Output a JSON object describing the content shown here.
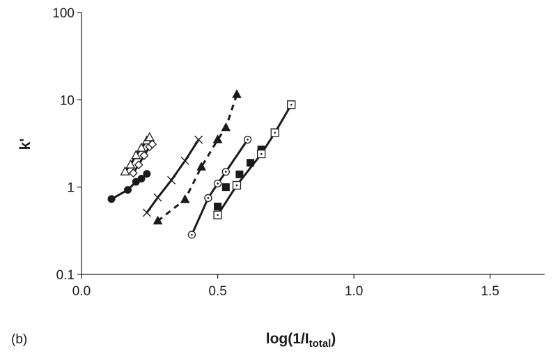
{
  "chart_data": {
    "type": "scatter",
    "panel_label": "(b)",
    "xlabel_main": "log(1/I",
    "xlabel_sub": "total",
    "xlabel_end": ")",
    "ylabel": "k'",
    "xlim": [
      0,
      1.7
    ],
    "ylim": [
      0.1,
      100
    ],
    "y_scale": "log",
    "grid": false,
    "x_ticks": [
      "0.0",
      "0.5",
      "1.0",
      "1.5"
    ],
    "x_tick_values": [
      0,
      0.5,
      1.0,
      1.5
    ],
    "y_ticks": [
      "0.1",
      "1",
      "10",
      "100"
    ],
    "y_tick_values": [
      0.1,
      1,
      10,
      100
    ],
    "series": [
      {
        "marker": "open-triangle",
        "line": "solid",
        "points": [
          [
            0.16,
            1.5
          ],
          [
            0.18,
            1.8
          ],
          [
            0.2,
            2.3
          ],
          [
            0.22,
            2.8
          ],
          [
            0.24,
            3.4
          ],
          [
            0.25,
            3.7
          ]
        ]
      },
      {
        "marker": "open-diamond",
        "line": "solid",
        "points": [
          [
            0.19,
            1.45
          ],
          [
            0.21,
            1.8
          ],
          [
            0.23,
            2.3
          ],
          [
            0.25,
            2.9
          ],
          [
            0.26,
            3.1
          ]
        ]
      },
      {
        "marker": "filled-circle",
        "line": "solid",
        "points": [
          [
            0.11,
            0.73
          ],
          [
            0.17,
            0.93
          ],
          [
            0.2,
            1.15
          ],
          [
            0.22,
            1.25
          ],
          [
            0.24,
            1.42
          ]
        ]
      },
      {
        "marker": "cross",
        "line": "solid",
        "points": [
          [
            0.24,
            0.51
          ],
          [
            0.28,
            0.76
          ],
          [
            0.33,
            1.2
          ],
          [
            0.38,
            2.0
          ],
          [
            0.43,
            3.5
          ]
        ]
      },
      {
        "marker": "filled-triangle",
        "line": "dashed",
        "points": [
          [
            0.28,
            0.41
          ],
          [
            0.38,
            0.72
          ],
          [
            0.44,
            1.7
          ],
          [
            0.5,
            3.5
          ],
          [
            0.53,
            4.8
          ],
          [
            0.57,
            11.5
          ]
        ]
      },
      {
        "marker": "open-circle-dot",
        "line": "solid",
        "points": [
          [
            0.405,
            0.285
          ],
          [
            0.465,
            0.75
          ],
          [
            0.5,
            1.1
          ],
          [
            0.53,
            1.5
          ],
          [
            0.61,
            3.5
          ]
        ]
      },
      {
        "marker": "filled-square",
        "line": "none",
        "points": [
          [
            0.5,
            0.6
          ],
          [
            0.53,
            1.0
          ],
          [
            0.58,
            1.4
          ],
          [
            0.62,
            1.9
          ],
          [
            0.66,
            2.7
          ]
        ]
      },
      {
        "marker": "open-square-dot",
        "line": "solid",
        "points": [
          [
            0.5,
            0.48
          ],
          [
            0.57,
            1.05
          ],
          [
            0.66,
            2.4
          ],
          [
            0.71,
            4.2
          ],
          [
            0.77,
            8.8
          ]
        ]
      }
    ]
  }
}
